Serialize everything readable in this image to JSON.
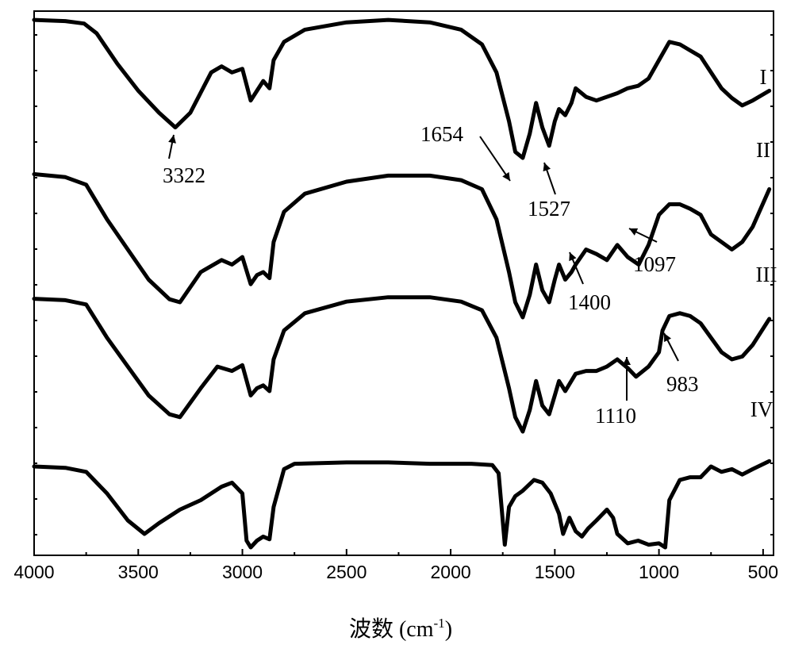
{
  "chart_data": {
    "type": "line",
    "xlabel": "波数 (cm",
    "xlabel_sup": "-1",
    "xlabel_tail": ")",
    "xlim": [
      4000,
      450
    ],
    "x_reversed": true,
    "xticks": [
      4000,
      3500,
      3000,
      2500,
      2000,
      1500,
      1000,
      500
    ],
    "grid": false,
    "series": [
      {
        "name": "I",
        "points": [
          [
            4000,
            0.98
          ],
          [
            3850,
            0.97
          ],
          [
            3760,
            0.95
          ],
          [
            3700,
            0.87
          ],
          [
            3600,
            0.62
          ],
          [
            3500,
            0.4
          ],
          [
            3400,
            0.22
          ],
          [
            3322,
            0.1
          ],
          [
            3250,
            0.22
          ],
          [
            3150,
            0.55
          ],
          [
            3100,
            0.6
          ],
          [
            3050,
            0.55
          ],
          [
            3000,
            0.58
          ],
          [
            2960,
            0.32
          ],
          [
            2930,
            0.4
          ],
          [
            2900,
            0.48
          ],
          [
            2870,
            0.42
          ],
          [
            2850,
            0.65
          ],
          [
            2800,
            0.8
          ],
          [
            2700,
            0.9
          ],
          [
            2500,
            0.96
          ],
          [
            2300,
            0.98
          ],
          [
            2100,
            0.96
          ],
          [
            1950,
            0.9
          ],
          [
            1850,
            0.78
          ],
          [
            1780,
            0.55
          ],
          [
            1720,
            0.15
          ],
          [
            1690,
            -0.1
          ],
          [
            1654,
            -0.15
          ],
          [
            1620,
            0.05
          ],
          [
            1590,
            0.3
          ],
          [
            1560,
            0.1
          ],
          [
            1527,
            -0.05
          ],
          [
            1500,
            0.15
          ],
          [
            1480,
            0.25
          ],
          [
            1450,
            0.2
          ],
          [
            1420,
            0.3
          ],
          [
            1400,
            0.42
          ],
          [
            1350,
            0.35
          ],
          [
            1300,
            0.32
          ],
          [
            1200,
            0.38
          ],
          [
            1150,
            0.42
          ],
          [
            1100,
            0.44
          ],
          [
            1050,
            0.5
          ],
          [
            1000,
            0.65
          ],
          [
            950,
            0.8
          ],
          [
            900,
            0.78
          ],
          [
            850,
            0.73
          ],
          [
            800,
            0.68
          ],
          [
            700,
            0.42
          ],
          [
            650,
            0.34
          ],
          [
            600,
            0.28
          ],
          [
            550,
            0.32
          ],
          [
            470,
            0.4
          ]
        ]
      },
      {
        "name": "II",
        "points": [
          [
            4000,
            0.95
          ],
          [
            3850,
            0.93
          ],
          [
            3750,
            0.88
          ],
          [
            3650,
            0.65
          ],
          [
            3550,
            0.45
          ],
          [
            3450,
            0.25
          ],
          [
            3350,
            0.12
          ],
          [
            3300,
            0.1
          ],
          [
            3200,
            0.3
          ],
          [
            3100,
            0.38
          ],
          [
            3050,
            0.35
          ],
          [
            3000,
            0.4
          ],
          [
            2960,
            0.22
          ],
          [
            2930,
            0.28
          ],
          [
            2900,
            0.3
          ],
          [
            2870,
            0.26
          ],
          [
            2850,
            0.5
          ],
          [
            2800,
            0.7
          ],
          [
            2700,
            0.82
          ],
          [
            2500,
            0.9
          ],
          [
            2300,
            0.94
          ],
          [
            2100,
            0.94
          ],
          [
            1950,
            0.91
          ],
          [
            1850,
            0.85
          ],
          [
            1780,
            0.65
          ],
          [
            1720,
            0.3
          ],
          [
            1690,
            0.1
          ],
          [
            1654,
            0.0
          ],
          [
            1620,
            0.15
          ],
          [
            1590,
            0.35
          ],
          [
            1560,
            0.18
          ],
          [
            1527,
            0.1
          ],
          [
            1500,
            0.25
          ],
          [
            1480,
            0.35
          ],
          [
            1450,
            0.25
          ],
          [
            1420,
            0.3
          ],
          [
            1400,
            0.35
          ],
          [
            1350,
            0.45
          ],
          [
            1300,
            0.42
          ],
          [
            1250,
            0.38
          ],
          [
            1200,
            0.48
          ],
          [
            1150,
            0.4
          ],
          [
            1097,
            0.35
          ],
          [
            1050,
            0.48
          ],
          [
            1000,
            0.68
          ],
          [
            950,
            0.75
          ],
          [
            900,
            0.75
          ],
          [
            850,
            0.72
          ],
          [
            800,
            0.68
          ],
          [
            750,
            0.55
          ],
          [
            700,
            0.5
          ],
          [
            650,
            0.45
          ],
          [
            600,
            0.5
          ],
          [
            550,
            0.6
          ],
          [
            470,
            0.85
          ]
        ]
      },
      {
        "name": "III",
        "points": [
          [
            4000,
            0.92
          ],
          [
            3850,
            0.91
          ],
          [
            3750,
            0.88
          ],
          [
            3650,
            0.65
          ],
          [
            3550,
            0.45
          ],
          [
            3450,
            0.25
          ],
          [
            3350,
            0.12
          ],
          [
            3300,
            0.1
          ],
          [
            3200,
            0.3
          ],
          [
            3120,
            0.45
          ],
          [
            3050,
            0.42
          ],
          [
            3000,
            0.46
          ],
          [
            2960,
            0.25
          ],
          [
            2930,
            0.3
          ],
          [
            2900,
            0.32
          ],
          [
            2870,
            0.28
          ],
          [
            2850,
            0.5
          ],
          [
            2800,
            0.7
          ],
          [
            2700,
            0.82
          ],
          [
            2500,
            0.9
          ],
          [
            2300,
            0.93
          ],
          [
            2100,
            0.93
          ],
          [
            1950,
            0.9
          ],
          [
            1850,
            0.84
          ],
          [
            1780,
            0.65
          ],
          [
            1720,
            0.3
          ],
          [
            1690,
            0.1
          ],
          [
            1654,
            0.0
          ],
          [
            1620,
            0.15
          ],
          [
            1590,
            0.35
          ],
          [
            1560,
            0.18
          ],
          [
            1527,
            0.12
          ],
          [
            1500,
            0.25
          ],
          [
            1480,
            0.35
          ],
          [
            1450,
            0.28
          ],
          [
            1400,
            0.4
          ],
          [
            1350,
            0.42
          ],
          [
            1300,
            0.42
          ],
          [
            1250,
            0.45
          ],
          [
            1200,
            0.5
          ],
          [
            1150,
            0.44
          ],
          [
            1110,
            0.38
          ],
          [
            1050,
            0.45
          ],
          [
            1000,
            0.55
          ],
          [
            983,
            0.7
          ],
          [
            950,
            0.8
          ],
          [
            900,
            0.82
          ],
          [
            850,
            0.8
          ],
          [
            800,
            0.75
          ],
          [
            750,
            0.65
          ],
          [
            700,
            0.55
          ],
          [
            650,
            0.5
          ],
          [
            600,
            0.52
          ],
          [
            550,
            0.6
          ],
          [
            470,
            0.78
          ]
        ]
      },
      {
        "name": "IV",
        "points": [
          [
            4000,
            0.6
          ],
          [
            3850,
            0.59
          ],
          [
            3750,
            0.56
          ],
          [
            3650,
            0.4
          ],
          [
            3550,
            0.2
          ],
          [
            3470,
            0.1
          ],
          [
            3400,
            0.18
          ],
          [
            3300,
            0.28
          ],
          [
            3200,
            0.35
          ],
          [
            3100,
            0.45
          ],
          [
            3050,
            0.48
          ],
          [
            3000,
            0.4
          ],
          [
            2980,
            0.05
          ],
          [
            2960,
            0.0
          ],
          [
            2930,
            0.05
          ],
          [
            2900,
            0.08
          ],
          [
            2870,
            0.06
          ],
          [
            2850,
            0.3
          ],
          [
            2800,
            0.58
          ],
          [
            2750,
            0.62
          ],
          [
            2500,
            0.63
          ],
          [
            2300,
            0.63
          ],
          [
            2100,
            0.62
          ],
          [
            1900,
            0.62
          ],
          [
            1800,
            0.61
          ],
          [
            1770,
            0.55
          ],
          [
            1740,
            0.02
          ],
          [
            1720,
            0.3
          ],
          [
            1690,
            0.38
          ],
          [
            1654,
            0.42
          ],
          [
            1600,
            0.5
          ],
          [
            1560,
            0.48
          ],
          [
            1520,
            0.4
          ],
          [
            1480,
            0.25
          ],
          [
            1460,
            0.1
          ],
          [
            1430,
            0.22
          ],
          [
            1400,
            0.12
          ],
          [
            1370,
            0.08
          ],
          [
            1340,
            0.14
          ],
          [
            1300,
            0.2
          ],
          [
            1250,
            0.28
          ],
          [
            1220,
            0.22
          ],
          [
            1200,
            0.1
          ],
          [
            1150,
            0.03
          ],
          [
            1100,
            0.05
          ],
          [
            1050,
            0.02
          ],
          [
            1000,
            0.03
          ],
          [
            970,
            0.0
          ],
          [
            950,
            0.35
          ],
          [
            900,
            0.5
          ],
          [
            850,
            0.52
          ],
          [
            800,
            0.52
          ],
          [
            750,
            0.6
          ],
          [
            700,
            0.56
          ],
          [
            650,
            0.58
          ],
          [
            600,
            0.54
          ],
          [
            550,
            0.58
          ],
          [
            470,
            0.64
          ]
        ]
      }
    ],
    "annotations": [
      {
        "text": "3322",
        "x": 3322
      },
      {
        "text": "1654",
        "x": 1654
      },
      {
        "text": "1527",
        "x": 1527
      },
      {
        "text": "1400",
        "x": 1400
      },
      {
        "text": "1097",
        "x": 1097
      },
      {
        "text": "1110",
        "x": 1110
      },
      {
        "text": "983",
        "x": 983
      }
    ]
  }
}
